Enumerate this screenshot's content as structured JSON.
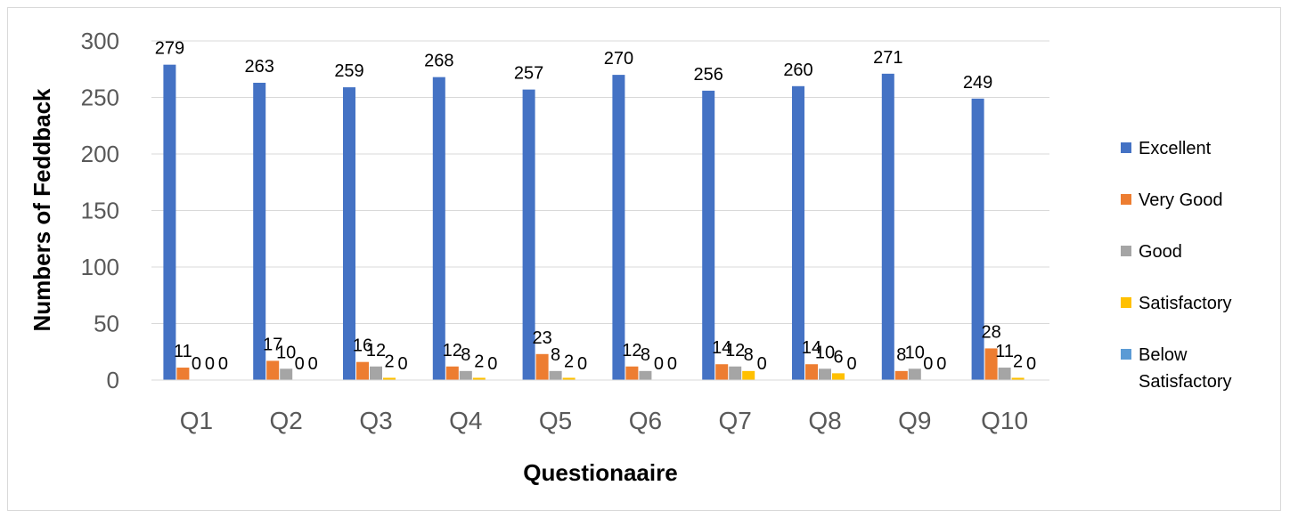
{
  "chart_data": {
    "type": "bar",
    "title": "",
    "xlabel": "Questionaaire",
    "ylabel": "Numbers of Feddback",
    "ylim": [
      0,
      300
    ],
    "yticks": [
      "0",
      "50",
      "100",
      "150",
      "200",
      "250",
      "300"
    ],
    "grid": true,
    "legend_position": "right",
    "categories": [
      "Q1",
      "Q2",
      "Q3",
      "Q4",
      "Q5",
      "Q6",
      "Q7",
      "Q8",
      "Q9",
      "Q10"
    ],
    "series": [
      {
        "name": "Excellent",
        "color": "#4472c4",
        "values": [
          279,
          263,
          259,
          268,
          257,
          270,
          256,
          260,
          271,
          249
        ],
        "labels": [
          "279",
          "263",
          "259",
          "268",
          "257",
          "270",
          "256",
          "260",
          "271",
          "249"
        ]
      },
      {
        "name": "Very Good",
        "color": "#ed7d31",
        "values": [
          11,
          17,
          16,
          12,
          23,
          12,
          14,
          14,
          8,
          28
        ],
        "labels": [
          "11",
          "17",
          "16",
          "12",
          "23",
          "12",
          "14",
          "14",
          "8",
          "28"
        ]
      },
      {
        "name": "Good",
        "color": "#a5a5a5",
        "values": [
          0,
          10,
          12,
          8,
          8,
          8,
          12,
          10,
          10,
          11
        ],
        "labels": [
          "0",
          "10",
          "12",
          "8",
          "8",
          "8",
          "12",
          "10",
          "10",
          "11"
        ]
      },
      {
        "name": "Satisfactory",
        "color": "#ffc000",
        "values": [
          0,
          0,
          2,
          2,
          2,
          0,
          8,
          6,
          0,
          2
        ],
        "labels": [
          "0",
          "0",
          "2",
          "2",
          "2",
          "0",
          "8",
          "6",
          "0",
          "2"
        ]
      },
      {
        "name": "Below Satisfactory",
        "color": "#5b9bd5",
        "values": [
          0,
          0,
          0,
          0,
          0,
          0,
          0,
          0,
          0,
          0
        ],
        "labels": [
          "0",
          "0",
          "0",
          "0",
          "0",
          "0",
          "0",
          "0",
          "0",
          "0"
        ]
      }
    ],
    "legend_lines": [
      [
        "Excellent"
      ],
      [
        "Very Good"
      ],
      [
        "Good"
      ],
      [
        "Satisfactory"
      ],
      [
        "Below",
        "Satisfactory"
      ]
    ]
  }
}
